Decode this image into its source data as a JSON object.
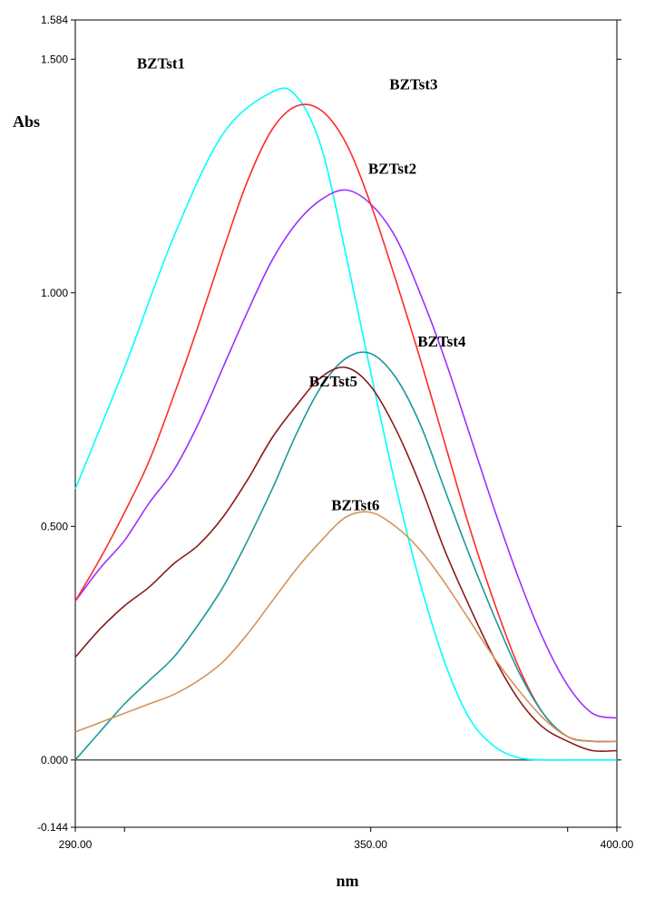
{
  "chart_data": {
    "type": "line",
    "title": "",
    "xlabel": "nm",
    "ylabel": "Abs",
    "xlim": [
      290.0,
      400.0
    ],
    "ylim": [
      -0.144,
      1.584
    ],
    "x_ticks": [
      290.0,
      350.0,
      400.0
    ],
    "x_tick_labels": [
      "290.00",
      "350.00",
      "400.00"
    ],
    "y_ticks": [
      -0.144,
      0.0,
      0.5,
      1.0,
      1.5,
      1.584
    ],
    "y_tick_labels": [
      "-0.144",
      "0.000",
      "0.500",
      "1.000",
      "1.500",
      "1.584"
    ],
    "grid": false,
    "legend": "none (series labeled directly on curves)",
    "series": [
      {
        "name": "BZTst1",
        "color": "#00ffff",
        "x": [
          290,
          300,
          310,
          320,
          330,
          335,
          340,
          345,
          350,
          355,
          360,
          365,
          370,
          375,
          380,
          385,
          390,
          395,
          400
        ],
        "y": [
          0.58,
          0.84,
          1.12,
          1.34,
          1.43,
          1.42,
          1.31,
          1.08,
          0.83,
          0.59,
          0.38,
          0.21,
          0.09,
          0.03,
          0.005,
          0.0,
          0.0,
          0.0,
          0.0
        ]
      },
      {
        "name": "BZTst2",
        "color": "#9b30ff",
        "x": [
          290,
          295,
          300,
          305,
          310,
          315,
          320,
          325,
          330,
          335,
          340,
          345,
          350,
          355,
          360,
          365,
          370,
          375,
          380,
          385,
          390,
          395,
          400
        ],
        "y": [
          0.34,
          0.41,
          0.47,
          0.55,
          0.62,
          0.72,
          0.84,
          0.96,
          1.07,
          1.15,
          1.2,
          1.22,
          1.19,
          1.12,
          1.0,
          0.86,
          0.7,
          0.54,
          0.39,
          0.26,
          0.16,
          0.1,
          0.09
        ]
      },
      {
        "name": "BZTst3",
        "color": "#ff2a2a",
        "x": [
          290,
          295,
          300,
          305,
          310,
          315,
          320,
          325,
          330,
          335,
          340,
          345,
          350,
          355,
          360,
          365,
          370,
          375,
          380,
          385,
          390,
          395,
          400
        ],
        "y": [
          0.34,
          0.43,
          0.53,
          0.64,
          0.78,
          0.93,
          1.09,
          1.24,
          1.35,
          1.4,
          1.39,
          1.32,
          1.19,
          1.03,
          0.86,
          0.68,
          0.5,
          0.34,
          0.2,
          0.1,
          0.05,
          0.04,
          0.04
        ]
      },
      {
        "name": "BZTst4",
        "color": "#1a9a9a",
        "x": [
          290,
          295,
          300,
          305,
          310,
          315,
          320,
          325,
          330,
          335,
          340,
          345,
          350,
          355,
          360,
          365,
          370,
          375,
          380,
          385,
          390,
          395,
          400
        ],
        "y": [
          0.0,
          0.06,
          0.12,
          0.17,
          0.22,
          0.29,
          0.37,
          0.47,
          0.58,
          0.7,
          0.8,
          0.86,
          0.87,
          0.82,
          0.72,
          0.58,
          0.44,
          0.31,
          0.19,
          0.1,
          0.05,
          0.04,
          0.04
        ]
      },
      {
        "name": "BZTst5",
        "color": "#8b1a1a",
        "x": [
          290,
          295,
          300,
          305,
          310,
          315,
          320,
          325,
          330,
          335,
          340,
          345,
          350,
          355,
          360,
          365,
          370,
          375,
          380,
          385,
          390,
          395,
          400
        ],
        "y": [
          0.22,
          0.28,
          0.33,
          0.37,
          0.42,
          0.46,
          0.52,
          0.6,
          0.69,
          0.76,
          0.82,
          0.84,
          0.8,
          0.71,
          0.59,
          0.45,
          0.33,
          0.22,
          0.13,
          0.07,
          0.04,
          0.02,
          0.02
        ]
      },
      {
        "name": "BZTst6",
        "color": "#d4935a",
        "x": [
          290,
          295,
          300,
          305,
          310,
          315,
          320,
          325,
          330,
          335,
          340,
          345,
          350,
          355,
          360,
          365,
          370,
          375,
          380,
          385,
          390,
          395,
          400
        ],
        "y": [
          0.06,
          0.08,
          0.1,
          0.12,
          0.14,
          0.17,
          0.21,
          0.27,
          0.34,
          0.41,
          0.47,
          0.52,
          0.53,
          0.5,
          0.45,
          0.38,
          0.3,
          0.22,
          0.15,
          0.09,
          0.05,
          0.04,
          0.04
        ]
      }
    ]
  }
}
